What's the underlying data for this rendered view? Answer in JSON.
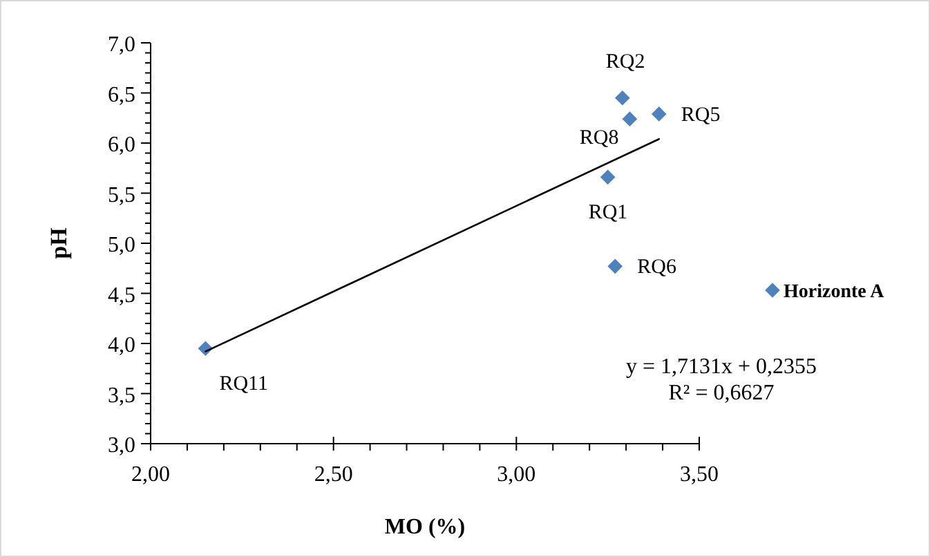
{
  "chart_data": {
    "type": "scatter",
    "xlabel": "MO (%)",
    "ylabel": "pH",
    "xlim": [
      2,
      3.5
    ],
    "ylim": [
      3,
      7
    ],
    "xticks": [
      {
        "value": 2,
        "label": "2,00"
      },
      {
        "value": 2.1,
        "label": null
      },
      {
        "value": 2.2,
        "label": null
      },
      {
        "value": 2.3,
        "label": null
      },
      {
        "value": 2.4,
        "label": null
      },
      {
        "value": 2.5,
        "label": "2,50"
      },
      {
        "value": 2.6,
        "label": null
      },
      {
        "value": 2.7,
        "label": null
      },
      {
        "value": 2.8,
        "label": null
      },
      {
        "value": 2.9,
        "label": null
      },
      {
        "value": 3,
        "label": "3,00"
      },
      {
        "value": 3.1,
        "label": null
      },
      {
        "value": 3.2,
        "label": null
      },
      {
        "value": 3.3,
        "label": null
      },
      {
        "value": 3.4,
        "label": null
      },
      {
        "value": 3.5,
        "label": "3,50"
      }
    ],
    "yticks": [
      {
        "value": 3,
        "label": "3,0"
      },
      {
        "value": 3.1,
        "label": null
      },
      {
        "value": 3.2,
        "label": null
      },
      {
        "value": 3.3,
        "label": null
      },
      {
        "value": 3.4,
        "label": null
      },
      {
        "value": 3.5,
        "label": "3,5"
      },
      {
        "value": 3.6,
        "label": null
      },
      {
        "value": 3.7,
        "label": null
      },
      {
        "value": 3.8,
        "label": null
      },
      {
        "value": 3.9,
        "label": null
      },
      {
        "value": 4,
        "label": "4,0"
      },
      {
        "value": 4.1,
        "label": null
      },
      {
        "value": 4.2,
        "label": null
      },
      {
        "value": 4.3,
        "label": null
      },
      {
        "value": 4.4,
        "label": null
      },
      {
        "value": 4.5,
        "label": "4,5"
      },
      {
        "value": 4.6,
        "label": null
      },
      {
        "value": 4.7,
        "label": null
      },
      {
        "value": 4.8,
        "label": null
      },
      {
        "value": 4.9,
        "label": null
      },
      {
        "value": 5,
        "label": "5,0"
      },
      {
        "value": 5.1,
        "label": null
      },
      {
        "value": 5.2,
        "label": null
      },
      {
        "value": 5.3,
        "label": null
      },
      {
        "value": 5.4,
        "label": null
      },
      {
        "value": 5.5,
        "label": "5,5"
      },
      {
        "value": 5.6,
        "label": null
      },
      {
        "value": 5.7,
        "label": null
      },
      {
        "value": 5.8,
        "label": null
      },
      {
        "value": 5.9,
        "label": null
      },
      {
        "value": 6,
        "label": "6,0"
      },
      {
        "value": 6.1,
        "label": null
      },
      {
        "value": 6.2,
        "label": null
      },
      {
        "value": 6.3,
        "label": null
      },
      {
        "value": 6.4,
        "label": null
      },
      {
        "value": 6.5,
        "label": "6,5"
      },
      {
        "value": 6.6,
        "label": null
      },
      {
        "value": 6.7,
        "label": null
      },
      {
        "value": 6.8,
        "label": null
      },
      {
        "value": 6.9,
        "label": null
      },
      {
        "value": 7,
        "label": "7,0"
      }
    ],
    "grid": false,
    "legend": "right",
    "marker": "diamond",
    "series": [
      {
        "name": "Horizonte A",
        "color": "#4f81bd",
        "x": [
          3.25,
          3.29,
          3.39,
          3.27,
          3.31,
          2.15
        ],
        "values": [
          5.66,
          6.45,
          6.29,
          4.77,
          6.24,
          3.95
        ]
      },
      {
        "type": "line",
        "color": "#000000",
        "line_style": "solid",
        "marker": "none",
        "x": [
          2.15,
          3.39
        ],
        "values": [
          3.92,
          6.04
        ]
      }
    ],
    "annotations": [
      {
        "text": "RQ1",
        "x": 3.25,
        "y": 5.66
      },
      {
        "text": "RQ2",
        "x": 3.29,
        "y": 6.45
      },
      {
        "text": "RQ5",
        "x": 3.39,
        "y": 6.29
      },
      {
        "text": "RQ6",
        "x": 3.27,
        "y": 4.77
      },
      {
        "text": "RQ8",
        "x": 3.31,
        "y": 6.24
      },
      {
        "text": "RQ11",
        "x": 2.15,
        "y": 3.95
      },
      "y = 1,7131x + 0,2355",
      "R² = 0,6627"
    ]
  }
}
